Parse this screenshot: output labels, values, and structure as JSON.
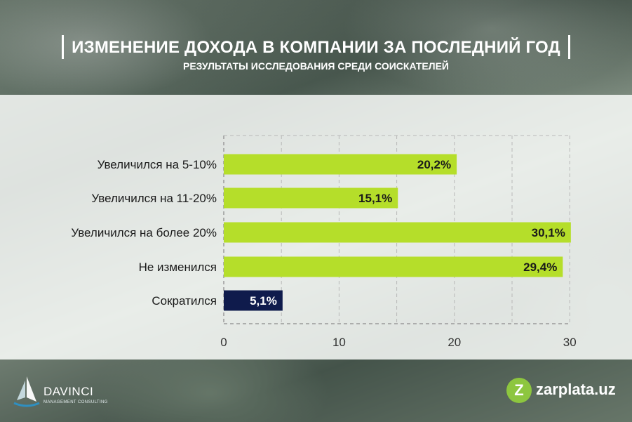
{
  "header": {
    "title": "ИЗМЕНЕНИЕ ДОХОДА В КОМПАНИИ ЗА ПОСЛЕДНИЙ ГОД",
    "subtitle": "РЕЗУЛЬТАТЫ ИССЛЕДОВАНИЯ СРЕДИ СОИСКАТЕЛЕЙ"
  },
  "chart_data": {
    "type": "bar",
    "orientation": "horizontal",
    "categories": [
      "Увеличился на 5-10%",
      "Увеличился на 11-20%",
      "Увеличился на более 20%",
      "Не изменился",
      "Сократился"
    ],
    "values": [
      20.2,
      15.1,
      30.1,
      29.4,
      5.1
    ],
    "value_labels": [
      "20,2%",
      "15,1%",
      "30,1%",
      "29,4%",
      "5,1%"
    ],
    "bar_colors": [
      "#b5de2a",
      "#b5de2a",
      "#b5de2a",
      "#b5de2a",
      "#0f1b4c"
    ],
    "label_colors": [
      "#1a1a1a",
      "#1a1a1a",
      "#1a1a1a",
      "#1a1a1a",
      "#ffffff"
    ],
    "xticks": [
      0,
      10,
      20,
      30
    ],
    "xlim": [
      0,
      30
    ],
    "grid": true,
    "title": "ИЗМЕНЕНИЕ ДОХОДА В КОМПАНИИ ЗА ПОСЛЕДНИЙ ГОД",
    "xlabel": "",
    "ylabel": ""
  },
  "footer": {
    "left_logo_name": "DAVINCI",
    "left_logo_sub": "MANAGEMENT CONSULTING",
    "right_logo_mark": "Z",
    "right_logo_text": "zarplata.uz"
  },
  "colors": {
    "accent_green": "#b5de2a",
    "accent_navy": "#0f1b4c",
    "brand_green": "#8dc63f"
  }
}
